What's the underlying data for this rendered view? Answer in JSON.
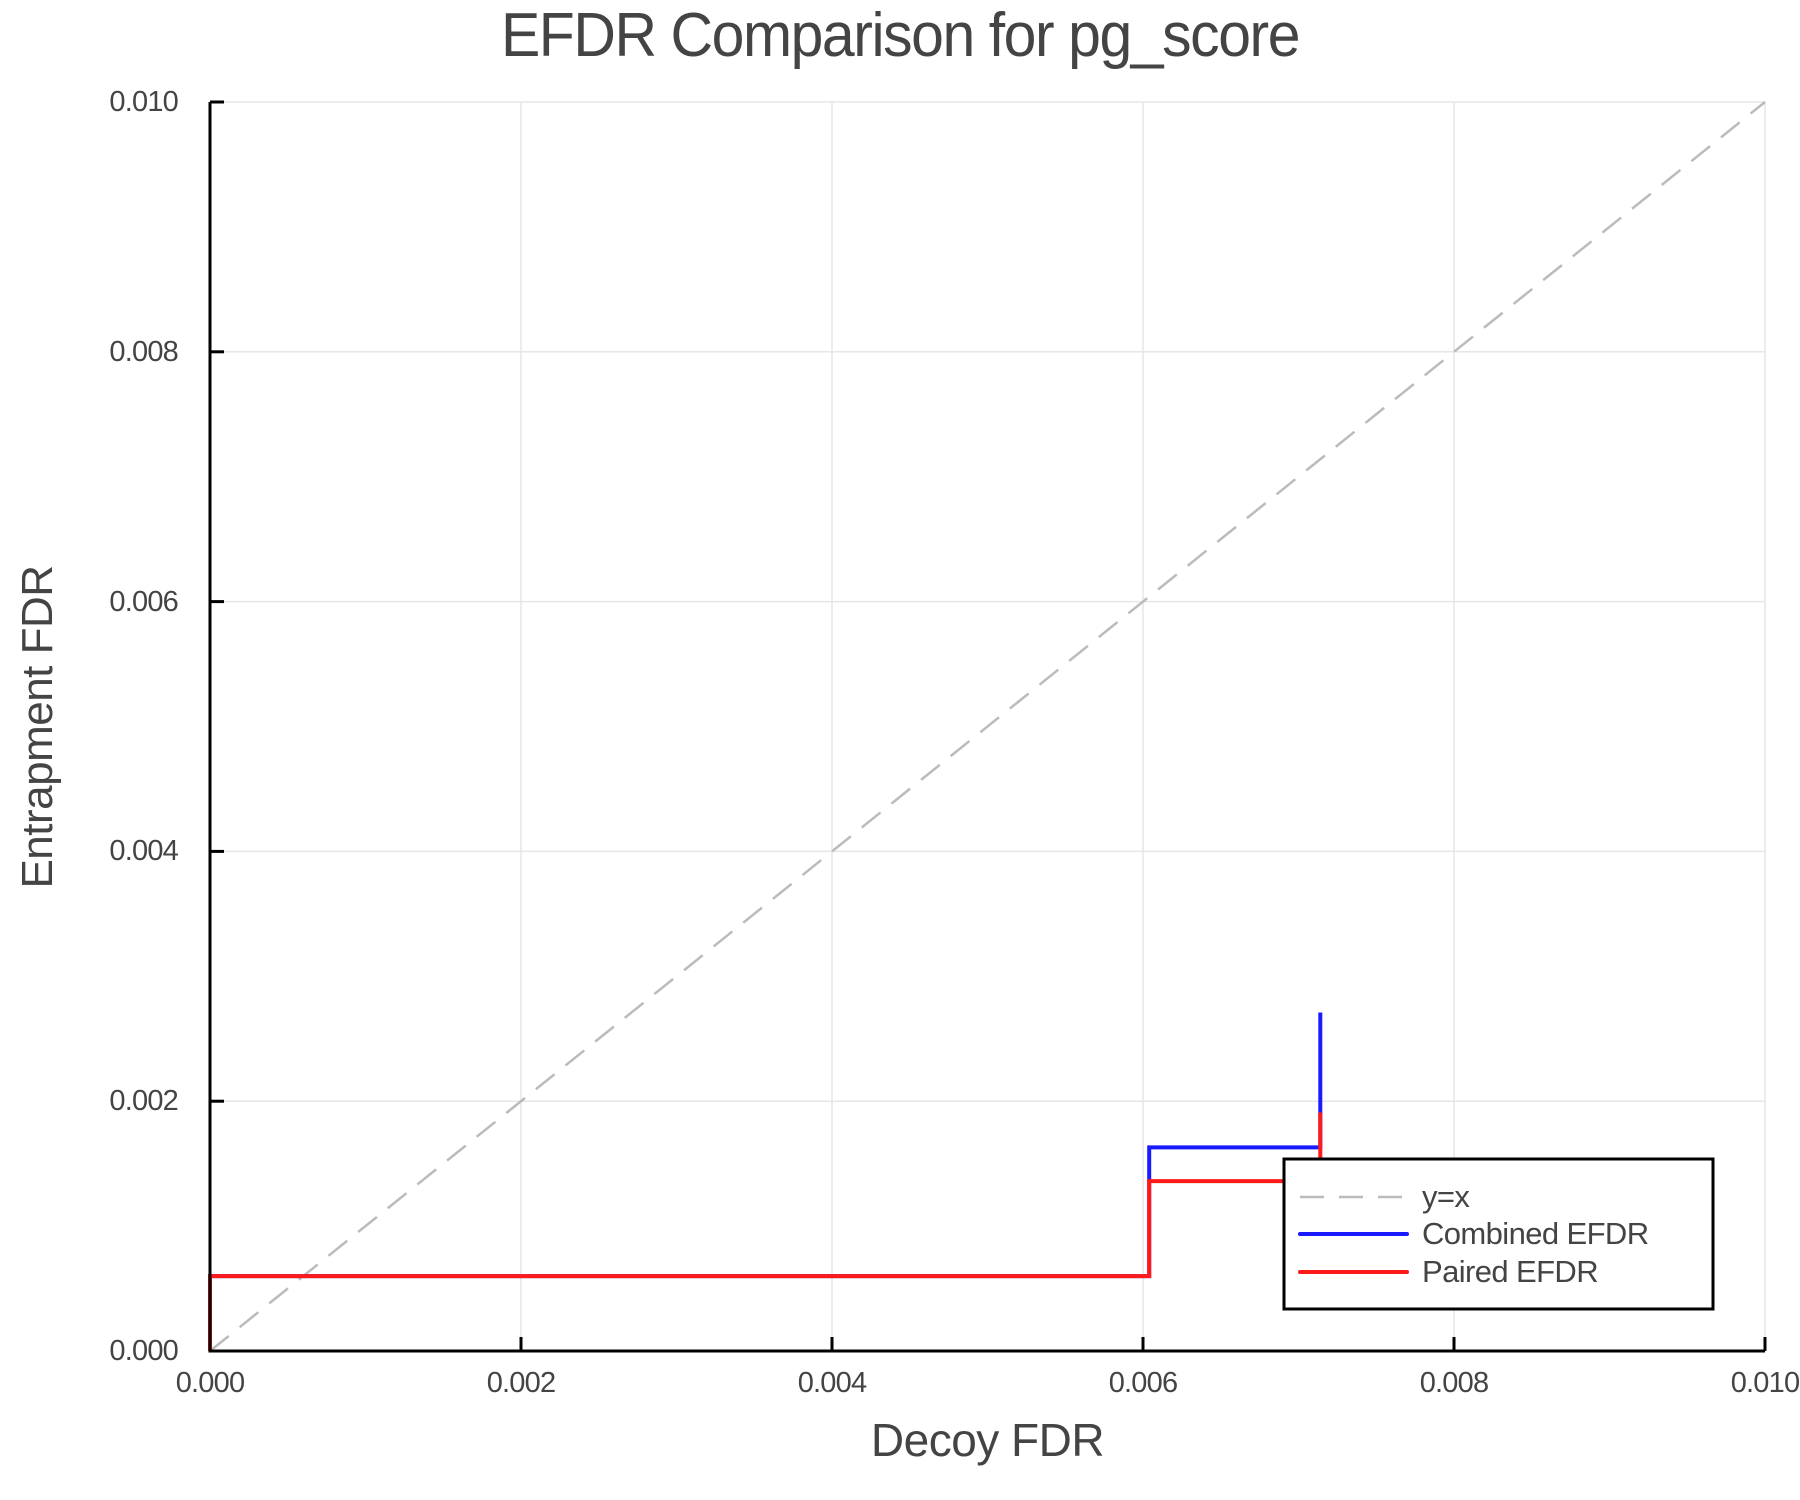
{
  "chart_data": {
    "type": "line",
    "title": "EFDR Comparison for pg_score",
    "xlabel": "Decoy FDR",
    "ylabel": "Entrapment FDR",
    "xlim": [
      0.0,
      0.01
    ],
    "ylim": [
      0.0,
      0.01
    ],
    "x_ticks": [
      "0.000",
      "0.002",
      "0.004",
      "0.006",
      "0.008",
      "0.010"
    ],
    "y_ticks": [
      "0.000",
      "0.002",
      "0.004",
      "0.006",
      "0.008",
      "0.010"
    ],
    "grid": true,
    "legend_position": "bottom-right",
    "series": [
      {
        "name": "y=x",
        "style": "dashed",
        "color": "#bbbbbb",
        "x": [
          0.0,
          0.01
        ],
        "y": [
          0.0,
          0.01
        ]
      },
      {
        "name": "Combined EFDR",
        "style": "step",
        "color": "#1a1aff",
        "x": [
          0.0,
          0.0,
          0.00604,
          0.00604,
          0.00714,
          0.00714
        ],
        "y": [
          0.0,
          0.0006,
          0.0006,
          0.00163,
          0.00163,
          0.00271
        ]
      },
      {
        "name": "Paired EFDR",
        "style": "step",
        "color": "#ff1a1a",
        "x": [
          0.0,
          0.0,
          0.00604,
          0.00604,
          0.00714,
          0.00714
        ],
        "y": [
          0.0,
          0.0006,
          0.0006,
          0.00136,
          0.00136,
          0.00191
        ]
      }
    ]
  },
  "legend": {
    "items": [
      {
        "label": "y=x"
      },
      {
        "label": "Combined EFDR"
      },
      {
        "label": "Paired EFDR"
      }
    ]
  }
}
